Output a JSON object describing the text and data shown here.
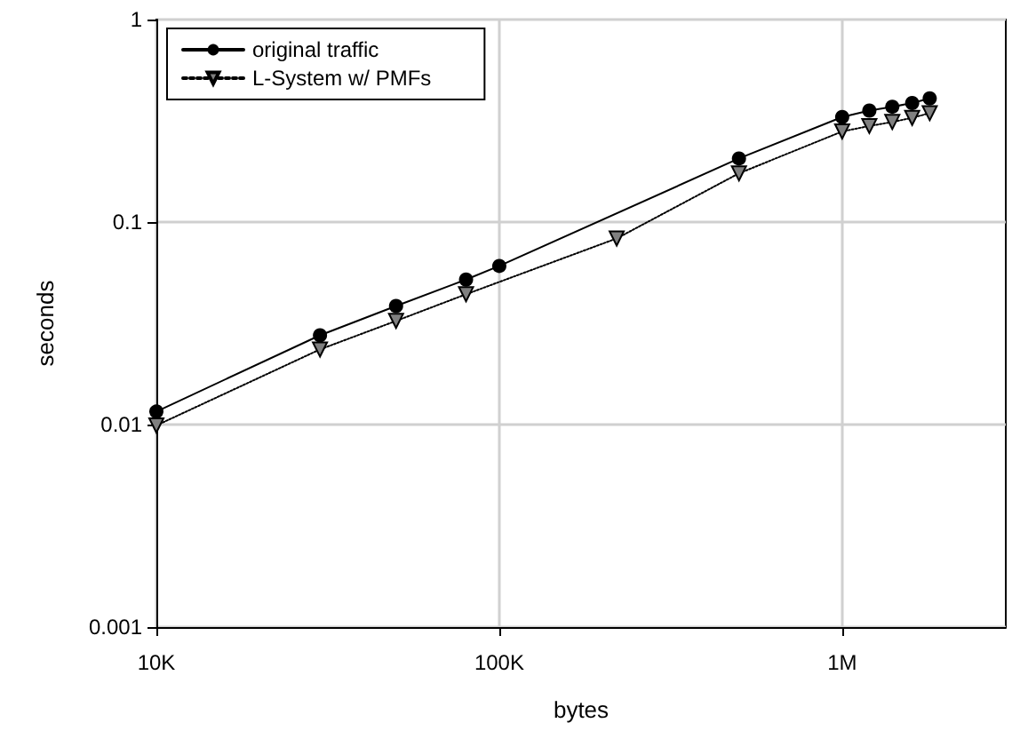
{
  "chart_data": {
    "type": "line",
    "xlabel": "bytes",
    "ylabel": "seconds",
    "log": "xy",
    "grid": true,
    "legend": "top left",
    "xlim": [
      10000,
      3000000
    ],
    "xticks": [
      {
        "value": 10000,
        "label": "10K"
      },
      {
        "value": 100000,
        "label": "100K"
      },
      {
        "value": 1000000,
        "label": "1M"
      }
    ],
    "ylim": [
      0.001,
      1
    ],
    "yticks": [
      0.001,
      0.01,
      0.1,
      1
    ],
    "series": [
      {
        "name": "original traffic",
        "color": "#000000",
        "marker": "circle",
        "line_style": "solid",
        "x": [
          10000,
          30000,
          50000,
          80000,
          100000,
          500000,
          1000000,
          1200000,
          1400000,
          1600000,
          1800000
        ],
        "values": [
          0.0116,
          0.0276,
          0.0385,
          0.052,
          0.0607,
          0.206,
          0.33,
          0.355,
          0.371,
          0.387,
          0.408
        ]
      },
      {
        "name": "L-System w/ PMFs",
        "color": "#808080",
        "marker": "triangle",
        "line_style": "dotted",
        "x": [
          10000,
          30000,
          50000,
          80000,
          220000,
          500000,
          1000000,
          1200000,
          1400000,
          1600000,
          1800000
        ],
        "values": [
          0.0099,
          0.0235,
          0.0325,
          0.044,
          0.083,
          0.174,
          0.28,
          0.298,
          0.312,
          0.327,
          0.345
        ]
      }
    ]
  }
}
